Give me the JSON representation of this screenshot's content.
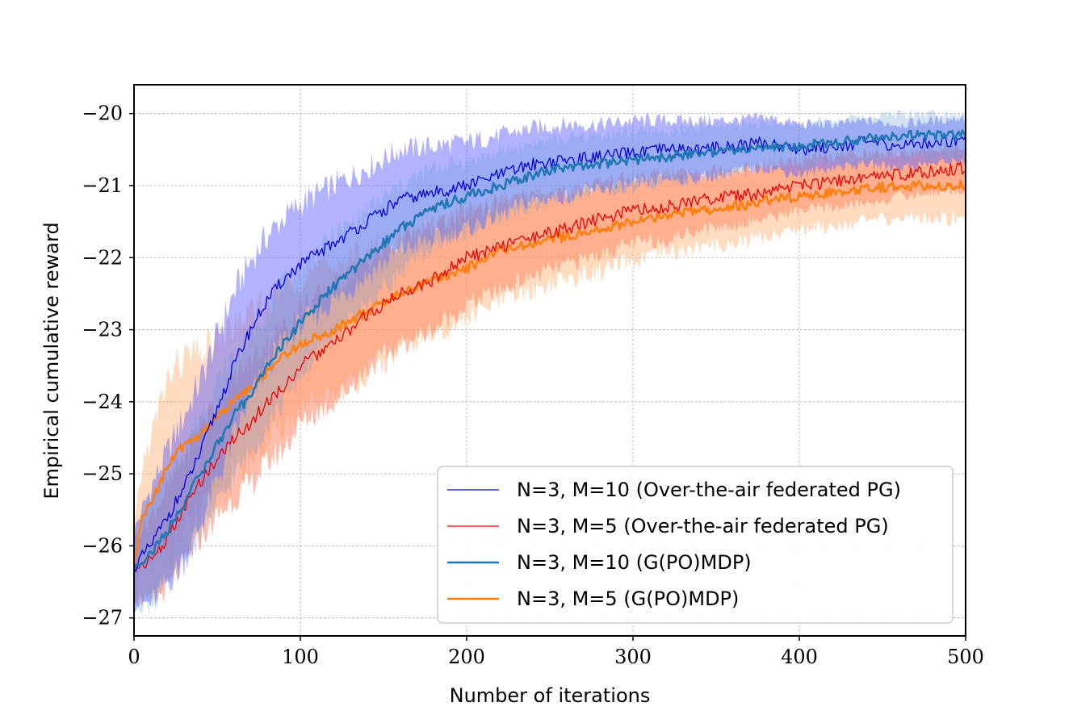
{
  "chart_data": {
    "type": "line",
    "title": "",
    "xlabel": "Number of iterations",
    "ylabel": "Empirical cumulative reward",
    "xlim": [
      0,
      500
    ],
    "ylim": [
      -27.25,
      -19.6
    ],
    "xticks": [
      0,
      100,
      200,
      300,
      400,
      500
    ],
    "xtick_labels": [
      "0",
      "100",
      "200",
      "300",
      "400",
      "500"
    ],
    "yticks": [
      -27,
      -26,
      -25,
      -24,
      -23,
      -22,
      -21,
      -20
    ],
    "ytick_labels": [
      "−27",
      "−26",
      "−25",
      "−24",
      "−23",
      "−22",
      "−21",
      "−20"
    ],
    "grid": true,
    "legend_position": "lower-right",
    "series": [
      {
        "name": "N=3, M=10 (Over-the-air federated PG)",
        "color": "#0000dd",
        "band_color": "#6666ff",
        "band_opacity": 0.5,
        "line_width": 1.3,
        "x": [
          0,
          10,
          20,
          30,
          40,
          50,
          60,
          70,
          80,
          90,
          100,
          120,
          140,
          160,
          180,
          200,
          220,
          240,
          260,
          280,
          300,
          320,
          340,
          360,
          380,
          400,
          420,
          440,
          460,
          480,
          500
        ],
        "y": [
          -26.3,
          -26.0,
          -25.6,
          -25.2,
          -24.7,
          -24.1,
          -23.5,
          -23.0,
          -22.6,
          -22.3,
          -22.1,
          -21.8,
          -21.5,
          -21.2,
          -21.1,
          -21.0,
          -20.85,
          -20.7,
          -20.65,
          -20.6,
          -20.55,
          -20.5,
          -20.5,
          -20.45,
          -20.4,
          -20.5,
          -20.45,
          -20.4,
          -20.45,
          -20.4,
          -20.35
        ],
        "band_width": [
          0.5,
          0.8,
          0.9,
          1.0,
          1.0,
          1.0,
          1.0,
          0.95,
          0.9,
          0.85,
          0.85,
          0.8,
          0.75,
          0.7,
          0.65,
          0.6,
          0.55,
          0.5,
          0.5,
          0.45,
          0.45,
          0.4,
          0.4,
          0.35,
          0.35,
          0.35,
          0.3,
          0.3,
          0.3,
          0.3,
          0.3
        ]
      },
      {
        "name": "N=3, M=5 (Over-the-air federated PG)",
        "color": "#ee0000",
        "band_color": "#ff8866",
        "band_opacity": 0.55,
        "line_width": 1.3,
        "x": [
          0,
          10,
          20,
          30,
          40,
          50,
          60,
          70,
          80,
          90,
          100,
          120,
          140,
          160,
          180,
          200,
          220,
          240,
          260,
          280,
          300,
          320,
          340,
          360,
          380,
          400,
          420,
          440,
          460,
          480,
          500
        ],
        "y": [
          -26.3,
          -26.2,
          -25.9,
          -25.5,
          -25.1,
          -24.8,
          -24.5,
          -24.3,
          -24.0,
          -23.8,
          -23.5,
          -23.2,
          -22.8,
          -22.5,
          -22.3,
          -22.0,
          -21.85,
          -21.7,
          -21.6,
          -21.45,
          -21.35,
          -21.3,
          -21.2,
          -21.15,
          -21.1,
          -21.0,
          -20.95,
          -20.9,
          -20.85,
          -20.8,
          -20.75
        ],
        "band_width": [
          0.4,
          0.6,
          0.7,
          0.75,
          0.8,
          0.8,
          0.85,
          0.85,
          0.85,
          0.85,
          0.8,
          0.8,
          0.75,
          0.7,
          0.7,
          0.65,
          0.6,
          0.55,
          0.5,
          0.5,
          0.45,
          0.45,
          0.4,
          0.4,
          0.35,
          0.35,
          0.35,
          0.35,
          0.3,
          0.3,
          0.3
        ]
      },
      {
        "name": "N=3, M=10 (G(PO)MDP)",
        "color": "#1f77b4",
        "band_color": "#6a9fd8",
        "band_opacity": 0.3,
        "line_width": 2.6,
        "x": [
          0,
          10,
          20,
          30,
          40,
          50,
          60,
          70,
          80,
          90,
          100,
          120,
          140,
          160,
          180,
          200,
          220,
          240,
          260,
          280,
          300,
          320,
          340,
          360,
          380,
          400,
          420,
          440,
          460,
          480,
          500
        ],
        "y": [
          -26.3,
          -26.1,
          -25.8,
          -25.4,
          -25.0,
          -24.6,
          -24.2,
          -23.9,
          -23.5,
          -23.2,
          -22.9,
          -22.4,
          -22.0,
          -21.6,
          -21.3,
          -21.15,
          -21.0,
          -20.85,
          -20.75,
          -20.7,
          -20.65,
          -20.6,
          -20.55,
          -20.5,
          -20.45,
          -20.45,
          -20.4,
          -20.35,
          -20.3,
          -20.3,
          -20.3
        ],
        "band_width": [
          0.5,
          0.7,
          0.8,
          0.8,
          0.85,
          0.85,
          0.85,
          0.8,
          0.8,
          0.8,
          0.75,
          0.7,
          0.65,
          0.6,
          0.55,
          0.5,
          0.45,
          0.45,
          0.4,
          0.4,
          0.4,
          0.35,
          0.35,
          0.35,
          0.3,
          0.3,
          0.3,
          0.3,
          0.3,
          0.3,
          0.3
        ]
      },
      {
        "name": "N=3, M=5 (G(PO)MDP)",
        "color": "#ff7f0e",
        "band_color": "#ffb070",
        "band_opacity": 0.45,
        "line_width": 2.6,
        "x": [
          0,
          5,
          10,
          20,
          30,
          40,
          50,
          60,
          70,
          80,
          90,
          100,
          120,
          140,
          160,
          180,
          200,
          220,
          240,
          260,
          280,
          300,
          320,
          340,
          360,
          380,
          400,
          420,
          440,
          460,
          480,
          500
        ],
        "y": [
          -26.3,
          -25.6,
          -25.4,
          -24.9,
          -24.6,
          -24.45,
          -24.2,
          -24.0,
          -23.8,
          -23.6,
          -23.35,
          -23.2,
          -23.0,
          -22.75,
          -22.5,
          -22.3,
          -22.15,
          -21.9,
          -21.8,
          -21.7,
          -21.6,
          -21.5,
          -21.4,
          -21.35,
          -21.3,
          -21.2,
          -21.15,
          -21.1,
          -21.05,
          -21.0,
          -21.0,
          -21.0
        ],
        "band_width": [
          0.5,
          0.7,
          0.9,
          1.2,
          1.2,
          1.1,
          1.1,
          1.05,
          1.0,
          1.0,
          0.95,
          0.95,
          0.9,
          0.85,
          0.8,
          0.75,
          0.7,
          0.7,
          0.65,
          0.6,
          0.6,
          0.55,
          0.55,
          0.5,
          0.5,
          0.5,
          0.45,
          0.45,
          0.45,
          0.45,
          0.45,
          0.45
        ]
      }
    ]
  }
}
